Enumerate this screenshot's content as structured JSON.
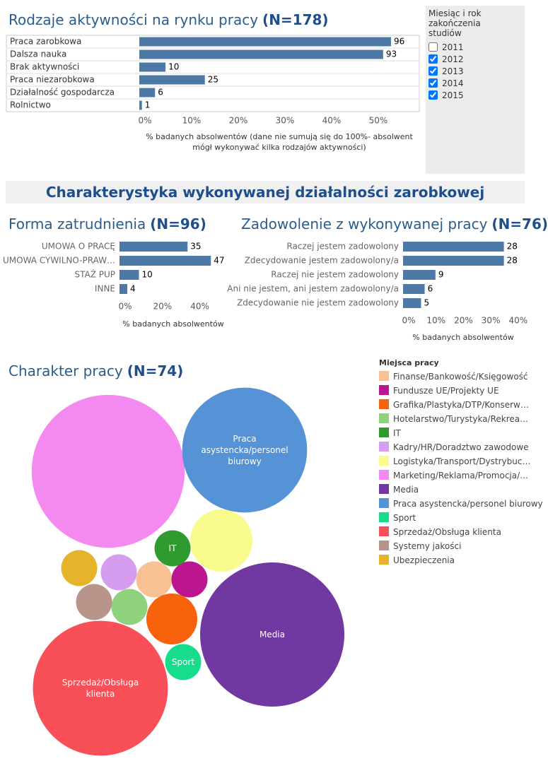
{
  "filter": {
    "title": "Miesiąc i rok zakończenia studiów",
    "options": [
      {
        "label": "2011",
        "checked": false
      },
      {
        "label": "2012",
        "checked": true
      },
      {
        "label": "2013",
        "checked": true
      },
      {
        "label": "2014",
        "checked": true
      },
      {
        "label": "2015",
        "checked": true
      }
    ]
  },
  "section_heading": "Charakterystyka wykonywanej działalności zarobkowej",
  "chart_data": [
    {
      "type": "bar",
      "title": "Rodzaje aktywności na rynku pracy",
      "title_n": "(N=178)",
      "categories": [
        "Praca zarobkowa",
        "Dalsza nauka",
        "Brak aktywności",
        "Praca niezarobkowa",
        "Działalność gospodarcza",
        "Rolnictwo"
      ],
      "values": [
        96,
        93,
        10,
        25,
        6,
        1
      ],
      "color": "#4e79a7",
      "xlabel": "% badanych absolwentów (dane nie sumują się do 100%- absolwent mógł wykonywać kilka rodzajów aktywności)",
      "xlim": [
        0,
        106.8
      ],
      "xticks": [
        {
          "value": 0,
          "label": "0%"
        },
        {
          "value": 17.8,
          "label": "10%"
        },
        {
          "value": 35.6,
          "label": "20%"
        },
        {
          "value": 53.4,
          "label": "30%"
        },
        {
          "value": 71.2,
          "label": "40%"
        },
        {
          "value": 89,
          "label": "50%"
        }
      ]
    },
    {
      "type": "bar",
      "title": "Forma zatrudnienia",
      "title_n": "(N=96)",
      "categories": [
        "UMOWA O PRACĘ",
        "UMOWA CYWILNO-PRAW…",
        "STAŻ PUP",
        "INNE"
      ],
      "values": [
        35,
        47,
        10,
        4
      ],
      "color": "#4e79a7",
      "xlabel": "% badanych absolwentów",
      "xlim": [
        0,
        48
      ],
      "xticks": [
        {
          "value": 0,
          "label": "0%"
        },
        {
          "value": 19.2,
          "label": "20%"
        },
        {
          "value": 38.4,
          "label": "40%"
        }
      ]
    },
    {
      "type": "bar",
      "title": "Zadowolenie z wykonywanej pracy",
      "title_n": "(N=76)",
      "categories": [
        "Raczej jestem zadowolony",
        "Zdecydowanie jestem zadowolony/a",
        "Raczej nie jestem zadowolony",
        "Ani nie jestem, ani jestem zadowolony/a",
        "Zdecydowanie nie jestem zadowolony"
      ],
      "values": [
        28,
        28,
        9,
        6,
        5
      ],
      "color": "#4e79a7",
      "xlabel": "% badanych absolwentów",
      "xlim": [
        0,
        32
      ],
      "xticks": [
        {
          "value": 0,
          "label": "0%"
        },
        {
          "value": 7.6,
          "label": "10%"
        },
        {
          "value": 15.2,
          "label": "20%"
        },
        {
          "value": 22.8,
          "label": "30%"
        },
        {
          "value": 30.4,
          "label": "40%"
        }
      ]
    },
    {
      "type": "bubble",
      "title": "Charakter pracy",
      "title_n": "(N=74)",
      "legend_title": "Miejsca pracy",
      "categories": [
        "Finanse/Bankowość/Księgowość",
        "Fundusze UE/Projekty UE",
        "Grafika/Plastyka/DTP/Konserw…",
        "Hotelarstwo/Turystyka/Rekrea…",
        "IT",
        "Kadry/HR/Doradztwo zawodowe",
        "Logistyka/Transport/Dystrybuc…",
        "Marketing/Reklama/Promocja/…",
        "Media",
        "Praca asystencka/personel biurowy",
        "Sport",
        "Sprzedaż/Obsługa klienta",
        "Systemy jakości",
        "Ubezpieczenia"
      ],
      "values": [
        1,
        1,
        2,
        1,
        1,
        1,
        3,
        18,
        16,
        12,
        1,
        14,
        1,
        1
      ],
      "colors": [
        "#f8c193",
        "#bb1690",
        "#f7620c",
        "#8fd27e",
        "#2f9a2f",
        "#d59cf0",
        "#fafb8f",
        "#f489ef",
        "#7238a1",
        "#5592d6",
        "#17dc8c",
        "#f94f58",
        "#b8958a",
        "#e5b42b"
      ]
    }
  ]
}
